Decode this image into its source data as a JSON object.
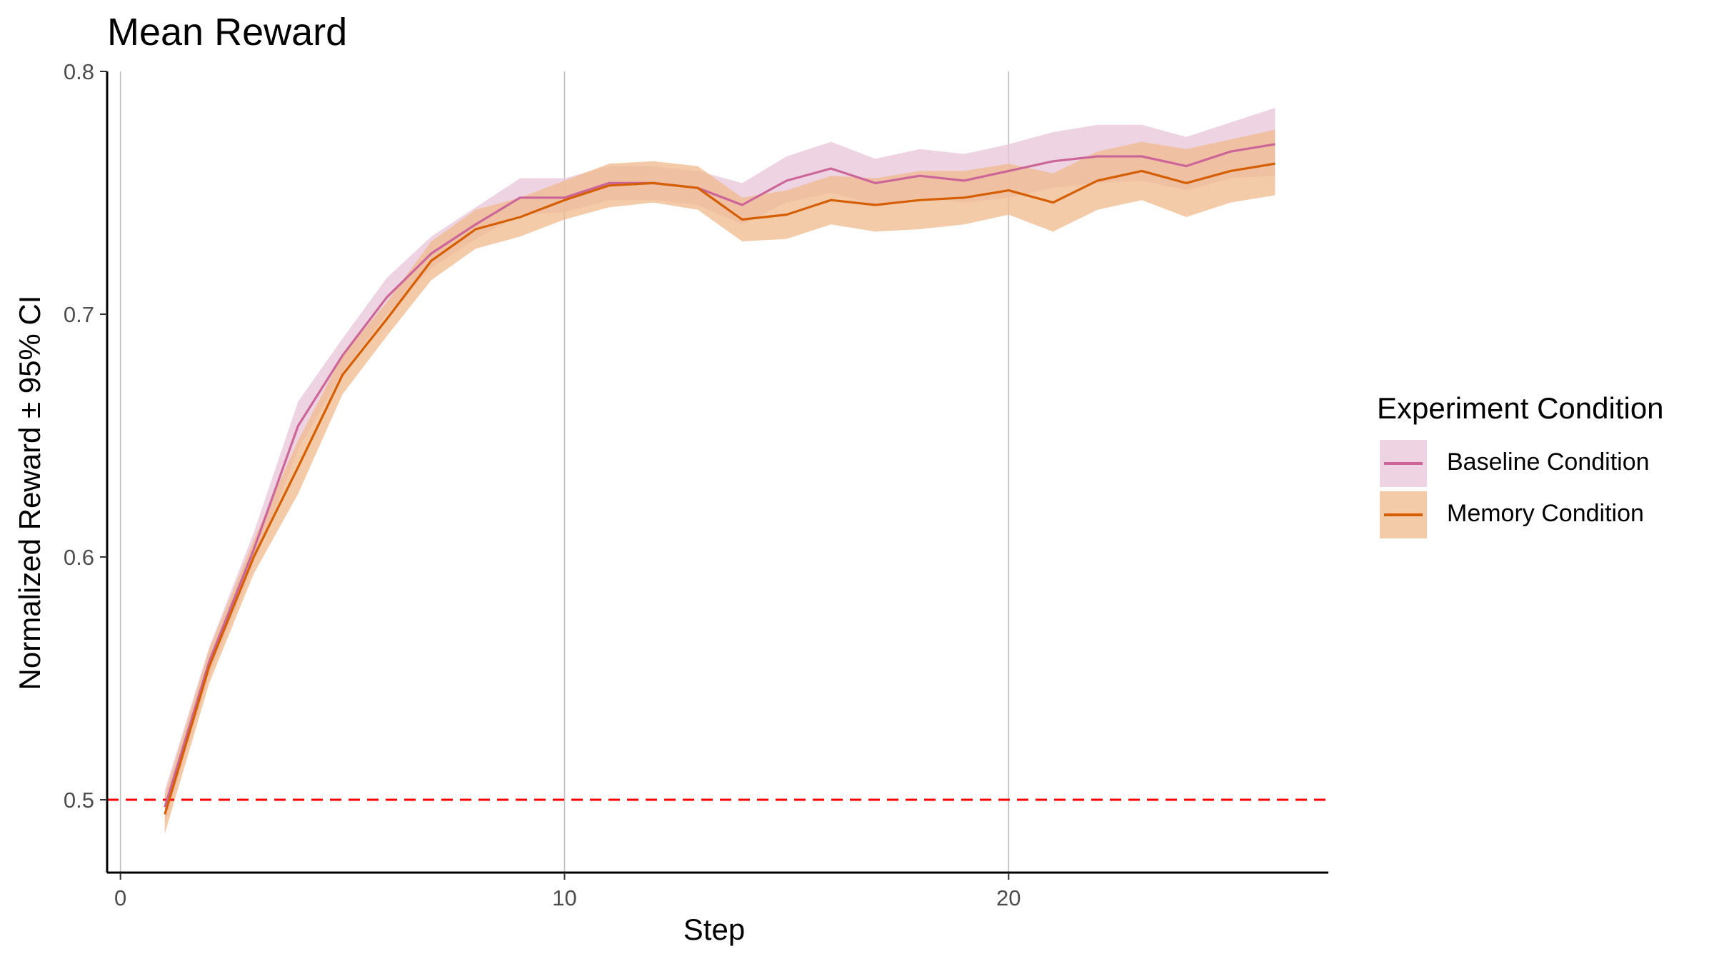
{
  "chart_data": {
    "type": "line",
    "title": "Mean Reward",
    "xlabel": "Step",
    "ylabel": "Normalized Reward ± 95% CI",
    "xlim": [
      -0.3,
      27.2
    ],
    "ylim": [
      0.47,
      0.8
    ],
    "x_ticks": [
      0,
      10,
      20
    ],
    "y_ticks": [
      0.5,
      0.6,
      0.7,
      0.8
    ],
    "grid": "vertical major lines only",
    "reference_line": {
      "y": 0.5,
      "style": "dashed",
      "color": "#ff0000"
    },
    "x": [
      1,
      2,
      3,
      4,
      5,
      6,
      7,
      8,
      9,
      10,
      11,
      12,
      13,
      14,
      15,
      16,
      17,
      18,
      19,
      20,
      21,
      22,
      23,
      24,
      25,
      26
    ],
    "series": [
      {
        "name": "Baseline Condition",
        "color": "#cc6699",
        "ribbon_color": "#e8c5d8",
        "values": [
          0.497,
          0.557,
          0.603,
          0.654,
          0.683,
          0.707,
          0.725,
          0.737,
          0.748,
          0.748,
          0.754,
          0.754,
          0.752,
          0.745,
          0.755,
          0.76,
          0.754,
          0.757,
          0.755,
          0.759,
          0.763,
          0.765,
          0.765,
          0.761,
          0.767,
          0.77
        ],
        "ci_lower": [
          0.49,
          0.551,
          0.597,
          0.644,
          0.676,
          0.7,
          0.719,
          0.731,
          0.741,
          0.742,
          0.747,
          0.747,
          0.745,
          0.737,
          0.746,
          0.75,
          0.745,
          0.748,
          0.746,
          0.748,
          0.752,
          0.754,
          0.755,
          0.751,
          0.756,
          0.757
        ],
        "ci_upper": [
          0.504,
          0.563,
          0.61,
          0.664,
          0.69,
          0.715,
          0.732,
          0.744,
          0.756,
          0.756,
          0.761,
          0.761,
          0.759,
          0.754,
          0.765,
          0.771,
          0.764,
          0.768,
          0.766,
          0.77,
          0.775,
          0.778,
          0.778,
          0.773,
          0.779,
          0.785
        ]
      },
      {
        "name": "Memory Condition",
        "color": "#d55e00",
        "ribbon_color": "#f0b98c",
        "values": [
          0.494,
          0.555,
          0.6,
          0.637,
          0.675,
          0.698,
          0.722,
          0.735,
          0.74,
          0.747,
          0.753,
          0.754,
          0.752,
          0.739,
          0.741,
          0.747,
          0.745,
          0.747,
          0.748,
          0.751,
          0.746,
          0.755,
          0.759,
          0.754,
          0.759,
          0.762
        ],
        "ci_lower": [
          0.486,
          0.548,
          0.593,
          0.626,
          0.667,
          0.691,
          0.714,
          0.727,
          0.732,
          0.739,
          0.744,
          0.746,
          0.743,
          0.73,
          0.731,
          0.737,
          0.734,
          0.735,
          0.737,
          0.741,
          0.734,
          0.743,
          0.747,
          0.74,
          0.746,
          0.749
        ],
        "ci_upper": [
          0.502,
          0.562,
          0.607,
          0.648,
          0.683,
          0.705,
          0.73,
          0.743,
          0.748,
          0.755,
          0.762,
          0.763,
          0.761,
          0.748,
          0.751,
          0.757,
          0.756,
          0.759,
          0.759,
          0.762,
          0.758,
          0.767,
          0.771,
          0.768,
          0.772,
          0.776
        ]
      }
    ],
    "legend": {
      "title": "Experiment Condition",
      "placement": "right"
    }
  }
}
